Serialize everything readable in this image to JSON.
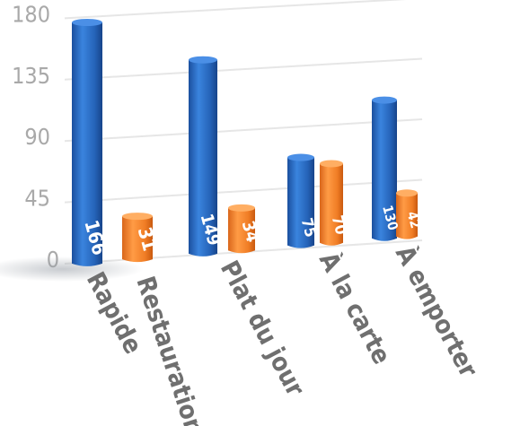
{
  "chart_data": {
    "type": "bar",
    "categories": [
      "Rapide",
      "Plat du jour",
      "À la carte",
      "À emporter"
    ],
    "series": [
      {
        "values": [
          166,
          149,
          75,
          130
        ]
      },
      {
        "values": [
          31,
          34,
          70,
          42
        ]
      }
    ],
    "secondary_labels": [
      "Restauration",
      "",
      "",
      ""
    ],
    "yticks": [
      0,
      45,
      90,
      135,
      180
    ],
    "ylim": [
      0,
      180
    ],
    "grid": true,
    "style": "3d-perspective",
    "colors": {
      "series1": "#2f6fc8",
      "series2": "#f28a30",
      "grid": "#e6e6e6",
      "tick": "#a9a9a9",
      "category": "#6f6f6f"
    }
  }
}
